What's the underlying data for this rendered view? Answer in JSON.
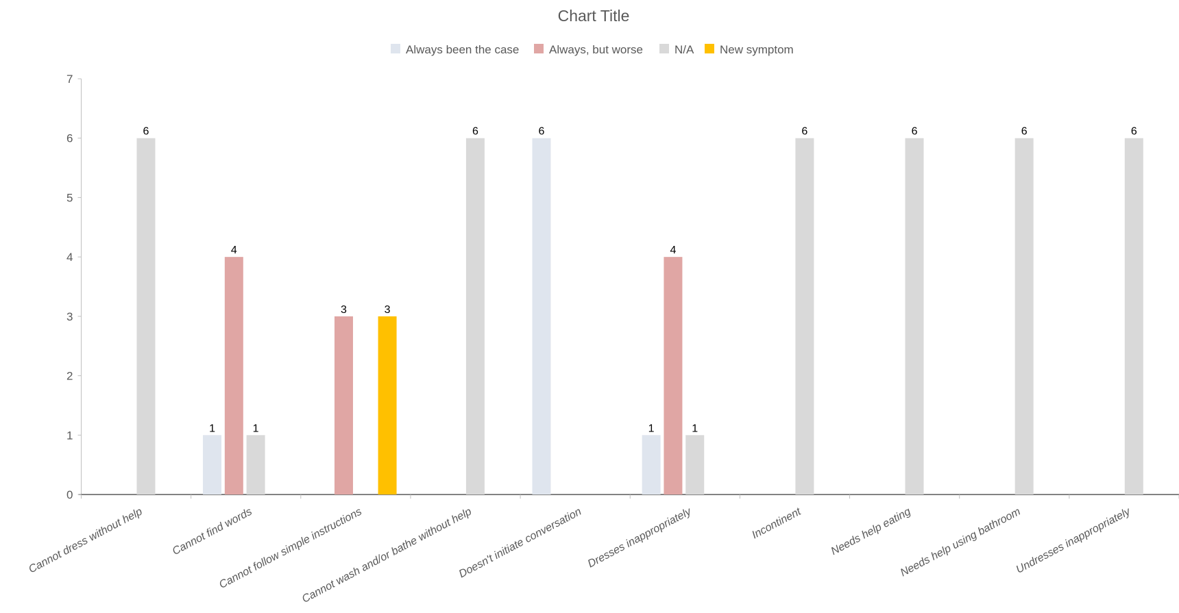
{
  "chart_data": {
    "type": "bar",
    "title": "Chart Title",
    "xlabel": "",
    "ylabel": "",
    "ylim": [
      0,
      7
    ],
    "yticks": [
      0,
      1,
      2,
      3,
      4,
      5,
      6,
      7
    ],
    "grid": false,
    "legend_position": "top",
    "categories": [
      "Cannot dress without help",
      "Cannot find words",
      "Cannot follow simple instructions",
      "Cannot wash and/or bathe without help",
      "Doesn't initiate conversation",
      "Dresses inappropriately",
      "Incontinent",
      "Needs help eating",
      "Needs help using bathroom",
      "Undresses inappropriately"
    ],
    "series": [
      {
        "name": "Always been the case",
        "color": "#dfe5ee",
        "values": [
          null,
          1,
          null,
          null,
          6,
          1,
          null,
          null,
          null,
          null
        ]
      },
      {
        "name": "Always, but worse",
        "color": "#e0a6a4",
        "values": [
          null,
          4,
          3,
          null,
          null,
          4,
          null,
          null,
          null,
          null
        ]
      },
      {
        "name": "N/A",
        "color": "#d9d9d9",
        "values": [
          6,
          1,
          null,
          6,
          null,
          1,
          6,
          6,
          6,
          6
        ]
      },
      {
        "name": "New symptom",
        "color": "#ffc000",
        "values": [
          null,
          null,
          3,
          null,
          null,
          null,
          null,
          null,
          null,
          null
        ]
      }
    ]
  }
}
